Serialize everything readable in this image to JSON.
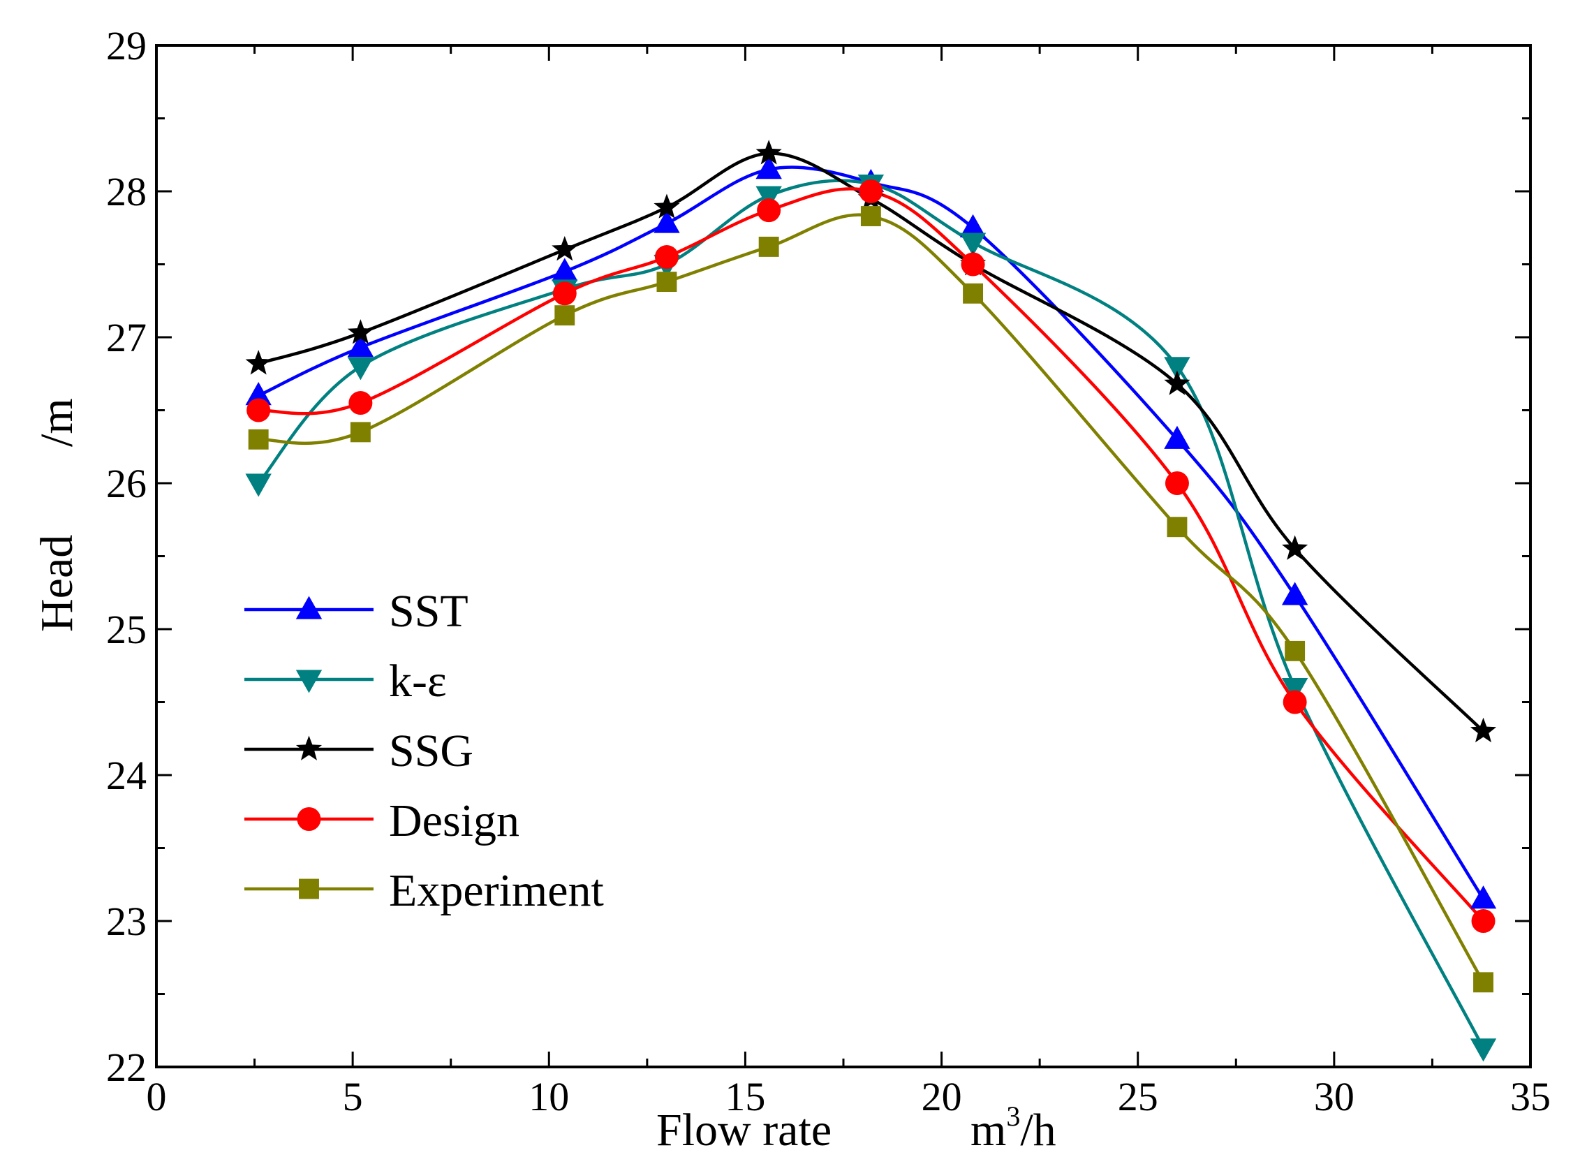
{
  "chart_data": {
    "type": "line",
    "title": "",
    "xlabel": "Flow rate",
    "xlabel_unit": "m",
    "xlabel_unit_sup": "3",
    "xlabel_unit_rest": "/h",
    "ylabel": "Head",
    "ylabel_unit": "/m",
    "xlim": [
      0,
      35
    ],
    "ylim": [
      22,
      29
    ],
    "xticks": [
      0,
      5,
      10,
      15,
      20,
      25,
      30,
      35
    ],
    "yticks": [
      22,
      23,
      24,
      25,
      26,
      27,
      28,
      29
    ],
    "grid": false,
    "legend_position": "center-left",
    "x": [
      2.6,
      5.2,
      10.4,
      13.0,
      15.6,
      18.2,
      20.8,
      26.0,
      29.0,
      33.8
    ],
    "series": [
      {
        "name": "SST",
        "marker": "triangle-up",
        "color": "#0000ff",
        "values": [
          26.6,
          26.93,
          27.45,
          27.78,
          28.15,
          28.06,
          27.75,
          26.3,
          25.23,
          23.15
        ]
      },
      {
        "name": "k-ε",
        "marker": "triangle-down",
        "color": "#008080",
        "values": [
          26.0,
          26.8,
          27.33,
          27.5,
          27.97,
          28.05,
          27.65,
          26.8,
          24.6,
          22.13
        ]
      },
      {
        "name": "SSG",
        "marker": "star",
        "color": "#000000",
        "values": [
          26.82,
          27.03,
          27.6,
          27.89,
          28.26,
          27.95,
          27.5,
          26.68,
          25.55,
          24.3
        ]
      },
      {
        "name": "Design",
        "marker": "circle",
        "color": "#ff0000",
        "values": [
          26.5,
          26.55,
          27.3,
          27.55,
          27.87,
          28.0,
          27.5,
          26.0,
          24.5,
          23.0
        ]
      },
      {
        "name": "Experiment",
        "marker": "square",
        "color": "#808000",
        "values": [
          26.3,
          26.35,
          27.15,
          27.38,
          27.62,
          27.83,
          27.3,
          25.7,
          24.85,
          22.58
        ]
      }
    ]
  }
}
